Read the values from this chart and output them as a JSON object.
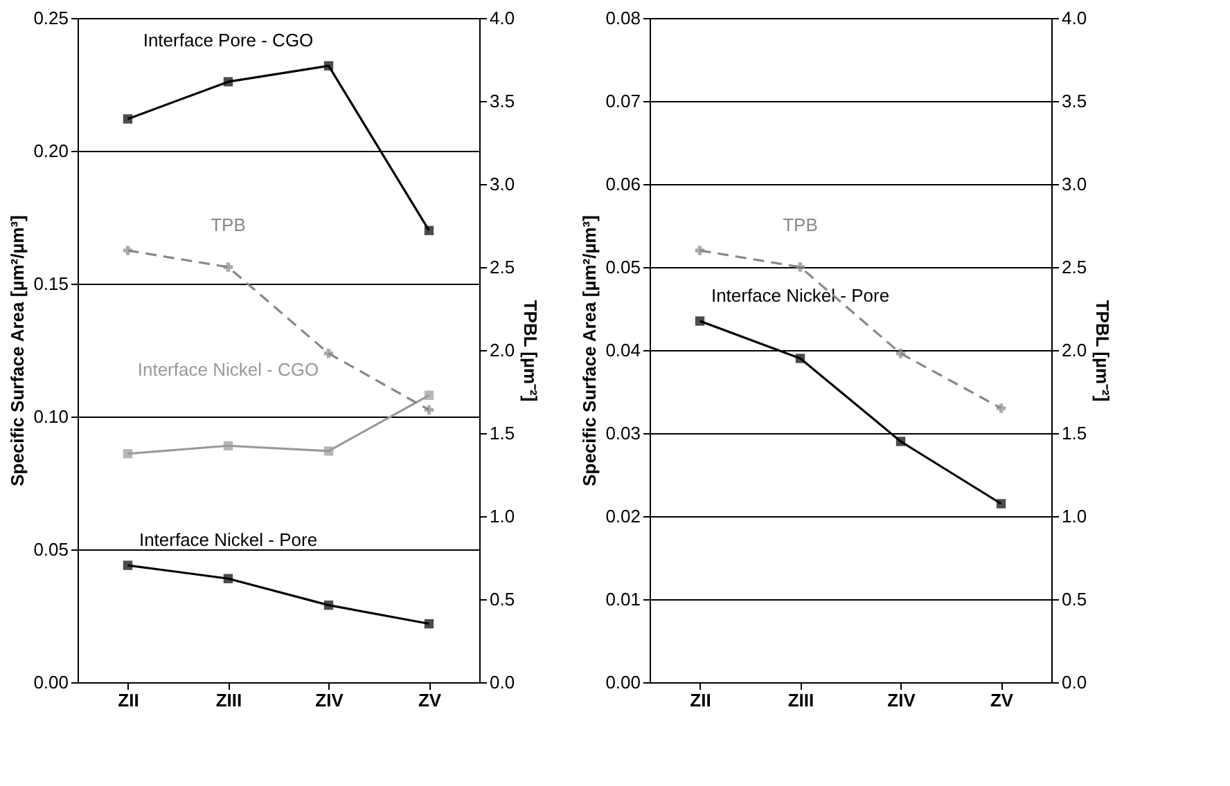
{
  "chart_data": [
    {
      "type": "line",
      "categories": [
        "ZII",
        "ZIII",
        "ZIV",
        "ZV"
      ],
      "ylabel": "Specific Surface Area [µm²/µm³]",
      "y2label": "TPBL [µm⁻²]",
      "ylim": [
        0,
        0.25
      ],
      "yticks": [
        {
          "value": 0,
          "label": "0.00"
        },
        0.05,
        {
          "value": 0.1,
          "label": "0.10"
        },
        0.15,
        {
          "value": 0.2,
          "label": "0.20"
        },
        0.25
      ],
      "y2lim": [
        0,
        4
      ],
      "y2ticks": [
        {
          "value": 0,
          "label": "0.0"
        },
        0.5,
        {
          "value": 1,
          "label": "1.0"
        },
        1.5,
        {
          "value": 2,
          "label": "2.0"
        },
        2.5,
        {
          "value": 3,
          "label": "3.0"
        },
        3.5,
        {
          "value": 4,
          "label": "4.0"
        }
      ],
      "grid": "y",
      "series": [
        {
          "name": "Interface Pore - CGO",
          "color": "#000000",
          "values": [
            0.212,
            0.226,
            0.232,
            0.17
          ],
          "marker": "square",
          "line_style": "solid"
        },
        {
          "name": "Interface Nickel - CGO",
          "color": "#999999",
          "values": [
            0.086,
            0.089,
            0.087,
            0.108
          ],
          "marker": "square",
          "line_style": "solid"
        },
        {
          "name": "Interface Nickel - Pore",
          "color": "#000000",
          "values": [
            0.044,
            0.039,
            0.029,
            0.022
          ],
          "marker": "square",
          "line_style": "solid"
        },
        {
          "name": "TPB",
          "color": "#888888",
          "values": [
            2.6,
            2.5,
            1.98,
            1.64
          ],
          "marker": "cross",
          "line_style": "dashed",
          "axis": "y2"
        }
      ]
    },
    {
      "type": "line",
      "categories": [
        "ZII",
        "ZIII",
        "ZIV",
        "ZV"
      ],
      "ylabel": "Specific Surface Area [µm²/µm³]",
      "y2label": "TPBL [µm⁻²]",
      "ylim": [
        0,
        0.08
      ],
      "yticks": [
        {
          "value": 0,
          "label": "0.00"
        },
        0.01,
        0.02,
        0.03,
        0.04,
        0.05,
        0.06,
        0.07,
        0.08
      ],
      "y2lim": [
        0,
        4
      ],
      "y2ticks": [
        {
          "value": 0,
          "label": "0.0"
        },
        0.5,
        {
          "value": 1,
          "label": "1.0"
        },
        1.5,
        {
          "value": 2,
          "label": "2.0"
        },
        2.5,
        {
          "value": 3,
          "label": "3.0"
        },
        3.5,
        {
          "value": 4,
          "label": "4.0"
        }
      ],
      "grid": "y",
      "series": [
        {
          "name": "Interface Nickel - Pore",
          "color": "#000000",
          "values": [
            0.0435,
            0.039,
            0.029,
            0.0215
          ],
          "marker": "square",
          "line_style": "solid"
        },
        {
          "name": "TPB",
          "color": "#888888",
          "values": [
            2.6,
            2.5,
            1.98,
            1.65
          ],
          "marker": "cross",
          "line_style": "dashed",
          "axis": "y2"
        }
      ]
    }
  ]
}
